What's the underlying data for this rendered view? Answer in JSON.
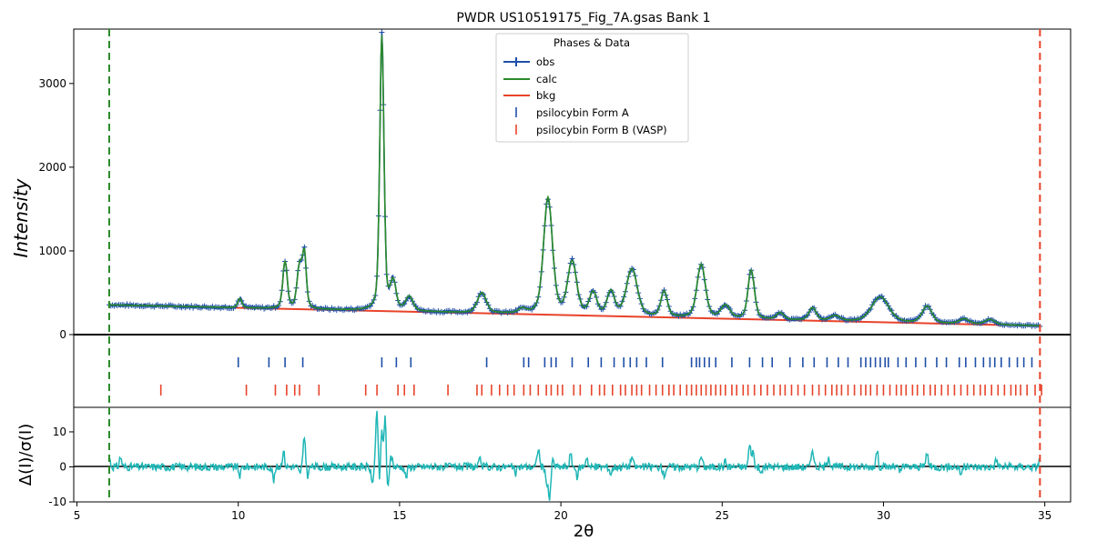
{
  "chart_data": {
    "type": "line",
    "title": "PWDR US10519175_Fig_7A.gsas Bank 1",
    "xlabel": "2θ",
    "ylabel_main": "Intensity",
    "ylabel_diff": "Δ(I)/σ(I)",
    "xlim": [
      4.9,
      35.8
    ],
    "main_ylim": [
      0,
      3650
    ],
    "diff_ylim": [
      -10,
      17
    ],
    "x_ticks": [
      5,
      10,
      15,
      20,
      25,
      30,
      35
    ],
    "main_y_ticks": [
      0,
      1000,
      2000,
      3000
    ],
    "diff_y_ticks": [
      -10,
      0,
      10
    ],
    "excluded_limits": [
      6.0,
      34.85
    ],
    "colors": {
      "obs": "#1f4fa8",
      "calc": "#2a8a2a",
      "bkg": "#e8432a",
      "formA": "#1f4fa8",
      "formB": "#e8432a",
      "diff": "#20b6b6",
      "lower_limit": "#2a8a2a",
      "upper_limit": "#e8432a"
    },
    "legend": {
      "title": "Phases & Data",
      "placement": "top-center",
      "entries": [
        "obs",
        "calc",
        "bkg",
        "psilocybin Form A",
        "psilocybin Form B (VASP)"
      ]
    },
    "background": {
      "x": [
        6.0,
        34.85
      ],
      "y": [
        355,
        105
      ]
    },
    "peaks": [
      {
        "pos": 10.05,
        "height": 110,
        "width": 0.08
      },
      {
        "pos": 11.45,
        "height": 560,
        "width": 0.09
      },
      {
        "pos": 11.9,
        "height": 500,
        "width": 0.1
      },
      {
        "pos": 12.05,
        "height": 620,
        "width": 0.08
      },
      {
        "pos": 14.45,
        "height": 3280,
        "width": 0.085
      },
      {
        "pos": 14.8,
        "height": 330,
        "width": 0.12
      },
      {
        "pos": 15.3,
        "height": 170,
        "width": 0.15
      },
      {
        "pos": 17.55,
        "height": 240,
        "width": 0.18
      },
      {
        "pos": 18.8,
        "height": 50,
        "width": 0.15
      },
      {
        "pos": 19.6,
        "height": 1390,
        "width": 0.18
      },
      {
        "pos": 20.35,
        "height": 620,
        "width": 0.18
      },
      {
        "pos": 21.0,
        "height": 260,
        "width": 0.15
      },
      {
        "pos": 21.55,
        "height": 280,
        "width": 0.15
      },
      {
        "pos": 22.2,
        "height": 560,
        "width": 0.22
      },
      {
        "pos": 23.2,
        "height": 300,
        "width": 0.13
      },
      {
        "pos": 24.35,
        "height": 640,
        "width": 0.17
      },
      {
        "pos": 25.1,
        "height": 150,
        "width": 0.18
      },
      {
        "pos": 25.9,
        "height": 580,
        "width": 0.13
      },
      {
        "pos": 26.8,
        "height": 80,
        "width": 0.15
      },
      {
        "pos": 27.8,
        "height": 150,
        "width": 0.15
      },
      {
        "pos": 28.5,
        "height": 60,
        "width": 0.2
      },
      {
        "pos": 29.9,
        "height": 300,
        "width": 0.35
      },
      {
        "pos": 31.35,
        "height": 200,
        "width": 0.2
      },
      {
        "pos": 32.5,
        "height": 60,
        "width": 0.2
      },
      {
        "pos": 33.3,
        "height": 60,
        "width": 0.2
      }
    ],
    "reflections_form_A": [
      10.0,
      10.95,
      11.45,
      12.0,
      14.45,
      14.9,
      15.35,
      17.7,
      18.85,
      19.0,
      19.5,
      19.7,
      19.85,
      20.35,
      20.85,
      21.25,
      21.65,
      21.95,
      22.15,
      22.35,
      22.65,
      23.15,
      24.05,
      24.2,
      24.3,
      24.45,
      24.6,
      24.8,
      25.3,
      25.85,
      26.25,
      26.55,
      27.1,
      27.5,
      27.85,
      28.25,
      28.6,
      28.9,
      29.3,
      29.45,
      29.6,
      29.75,
      29.9,
      30.05,
      30.15,
      30.45,
      30.7,
      31.0,
      31.3,
      31.65,
      31.95,
      32.35,
      32.55,
      32.85,
      33.1,
      33.3,
      33.45,
      33.65,
      33.9,
      34.15,
      34.35,
      34.6
    ],
    "reflections_form_B": [
      7.6,
      10.25,
      11.15,
      11.5,
      11.75,
      11.9,
      12.5,
      13.95,
      14.3,
      14.95,
      15.15,
      15.45,
      16.5,
      17.4,
      17.55,
      17.85,
      18.1,
      18.35,
      18.55,
      18.85,
      19.05,
      19.3,
      19.55,
      19.7,
      19.9,
      20.05,
      20.4,
      20.6,
      20.95,
      21.2,
      21.35,
      21.6,
      21.85,
      22.0,
      22.2,
      22.35,
      22.5,
      22.75,
      22.95,
      23.15,
      23.35,
      23.5,
      23.7,
      23.9,
      24.05,
      24.2,
      24.35,
      24.5,
      24.65,
      24.8,
      24.95,
      25.1,
      25.3,
      25.45,
      25.65,
      25.8,
      26.0,
      26.2,
      26.4,
      26.6,
      26.8,
      26.95,
      27.15,
      27.35,
      27.55,
      27.8,
      28.0,
      28.2,
      28.4,
      28.55,
      28.7,
      28.9,
      29.1,
      29.3,
      29.45,
      29.6,
      29.8,
      30.0,
      30.2,
      30.4,
      30.55,
      30.7,
      30.9,
      31.05,
      31.25,
      31.45,
      31.6,
      31.8,
      32.0,
      32.2,
      32.4,
      32.6,
      32.8,
      33.0,
      33.15,
      33.35,
      33.55,
      33.75,
      33.95,
      34.1,
      34.25,
      34.45,
      34.7,
      34.9
    ],
    "difference_spikes": [
      {
        "x": 6.0,
        "y": 2.5
      },
      {
        "x": 6.35,
        "y": 2.8
      },
      {
        "x": 10.05,
        "y": -2.5
      },
      {
        "x": 11.1,
        "y": -3.8
      },
      {
        "x": 11.4,
        "y": 4.5
      },
      {
        "x": 11.6,
        "y": 0
      },
      {
        "x": 11.9,
        "y": -1.8
      },
      {
        "x": 12.05,
        "y": 8.5
      },
      {
        "x": 12.15,
        "y": -2.5
      },
      {
        "x": 14.15,
        "y": -4.5
      },
      {
        "x": 14.3,
        "y": 16
      },
      {
        "x": 14.38,
        "y": -6
      },
      {
        "x": 14.45,
        "y": 12
      },
      {
        "x": 14.5,
        "y": -3
      },
      {
        "x": 14.55,
        "y": 16
      },
      {
        "x": 14.62,
        "y": -7
      },
      {
        "x": 14.75,
        "y": 3
      },
      {
        "x": 15.2,
        "y": -3
      },
      {
        "x": 17.5,
        "y": 2
      },
      {
        "x": 18.6,
        "y": -2
      },
      {
        "x": 19.3,
        "y": 5.5
      },
      {
        "x": 19.55,
        "y": -4.5
      },
      {
        "x": 19.65,
        "y": -9.5
      },
      {
        "x": 19.75,
        "y": 2
      },
      {
        "x": 20.3,
        "y": 3.5
      },
      {
        "x": 20.5,
        "y": -3
      },
      {
        "x": 20.8,
        "y": 3
      },
      {
        "x": 21.55,
        "y": -2
      },
      {
        "x": 22.2,
        "y": 3
      },
      {
        "x": 23.2,
        "y": -2.5
      },
      {
        "x": 24.35,
        "y": 3
      },
      {
        "x": 25.1,
        "y": 1.5
      },
      {
        "x": 25.85,
        "y": 6
      },
      {
        "x": 25.95,
        "y": 4.5
      },
      {
        "x": 26.2,
        "y": -2
      },
      {
        "x": 27.8,
        "y": 5.5
      },
      {
        "x": 28.3,
        "y": 3
      },
      {
        "x": 29.8,
        "y": 4.5
      },
      {
        "x": 30.5,
        "y": -1.5
      },
      {
        "x": 31.35,
        "y": 4
      },
      {
        "x": 32.4,
        "y": -2
      },
      {
        "x": 33.5,
        "y": 2
      },
      {
        "x": 34.85,
        "y": 2
      }
    ]
  }
}
